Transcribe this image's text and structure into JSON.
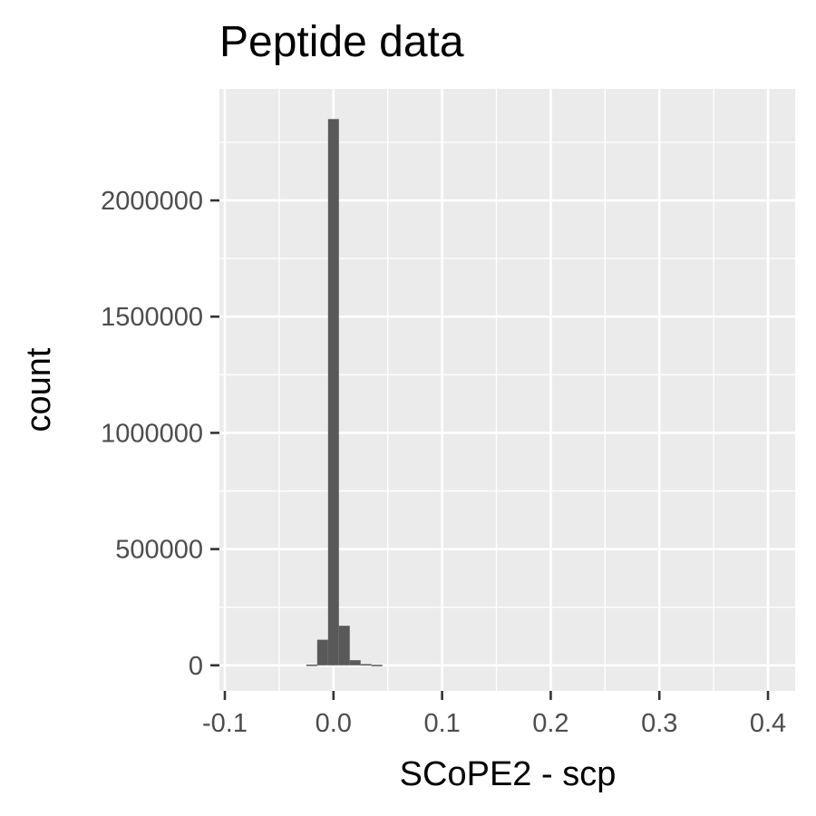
{
  "chart_data": {
    "type": "histogram",
    "title": "Peptide data",
    "xlabel": "SCoPE2 - scp",
    "ylabel": "count",
    "xlim": [
      -0.105,
      0.425
    ],
    "ylim": [
      -110000,
      2480000
    ],
    "x_ticks": [
      {
        "value": -0.1,
        "label": "-0.1"
      },
      {
        "value": 0.0,
        "label": "0.0"
      },
      {
        "value": 0.1,
        "label": "0.1"
      },
      {
        "value": 0.2,
        "label": "0.2"
      },
      {
        "value": 0.3,
        "label": "0.3"
      },
      {
        "value": 0.4,
        "label": "0.4"
      }
    ],
    "y_ticks": [
      {
        "value": 0,
        "label": "0"
      },
      {
        "value": 500000,
        "label": "500000"
      },
      {
        "value": 1000000,
        "label": "1000000"
      },
      {
        "value": 1500000,
        "label": "1500000"
      },
      {
        "value": 2000000,
        "label": "2000000"
      }
    ],
    "bins": [
      {
        "x0": -0.025,
        "x1": -0.015,
        "count": 3000
      },
      {
        "x0": -0.015,
        "x1": -0.005,
        "count": 110000
      },
      {
        "x0": -0.005,
        "x1": 0.005,
        "count": 2350000
      },
      {
        "x0": 0.005,
        "x1": 0.015,
        "count": 170000
      },
      {
        "x0": 0.015,
        "x1": 0.025,
        "count": 22000
      },
      {
        "x0": 0.025,
        "x1": 0.035,
        "count": 5000
      },
      {
        "x0": 0.035,
        "x1": 0.045,
        "count": 2000
      }
    ],
    "grid": true,
    "colors": {
      "panel": "#ebebeb",
      "grid": "#ffffff",
      "bar": "#595959",
      "tick": "#333333"
    }
  }
}
